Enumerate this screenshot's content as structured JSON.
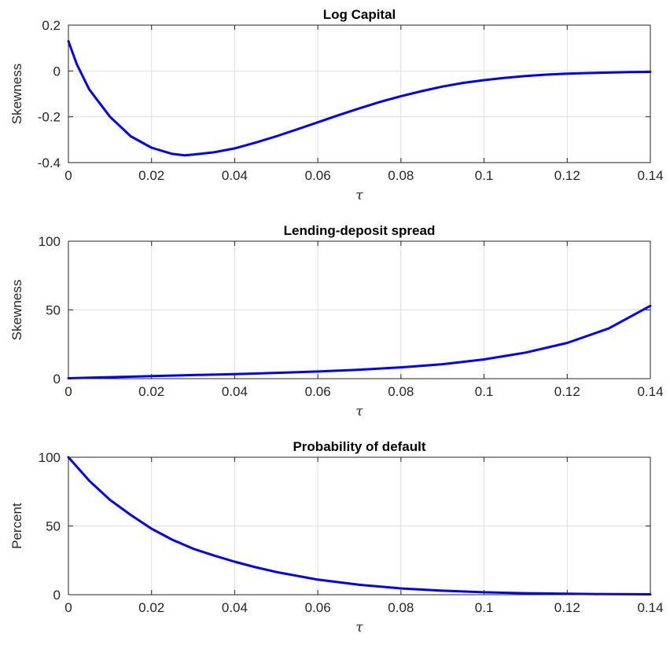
{
  "chart_data": [
    {
      "type": "line",
      "title": "Log Capital",
      "xlabel": "τ",
      "ylabel": "Skewness",
      "xlim": [
        0,
        0.14
      ],
      "ylim": [
        -0.4,
        0.2
      ],
      "xticks": [
        0,
        0.02,
        0.04,
        0.06,
        0.08,
        0.1,
        0.12,
        0.14
      ],
      "xtick_labels": [
        "0",
        "0.02",
        "0.04",
        "0.06",
        "0.08",
        "0.1",
        "0.12",
        "0.14"
      ],
      "yticks": [
        -0.4,
        -0.2,
        0,
        0.2
      ],
      "ytick_labels": [
        "-0.4",
        "-0.2",
        "0",
        "0.2"
      ],
      "grid": true,
      "series": [
        {
          "color": "#0000ff",
          "x": [
            0,
            0.002,
            0.005,
            0.01,
            0.015,
            0.02,
            0.025,
            0.028,
            0.03,
            0.035,
            0.04,
            0.045,
            0.05,
            0.055,
            0.06,
            0.065,
            0.07,
            0.075,
            0.08,
            0.085,
            0.09,
            0.095,
            0.1,
            0.105,
            0.11,
            0.115,
            0.12,
            0.125,
            0.13,
            0.135,
            0.14
          ],
          "y": [
            0.13,
            0.03,
            -0.08,
            -0.2,
            -0.285,
            -0.335,
            -0.362,
            -0.368,
            -0.365,
            -0.355,
            -0.338,
            -0.313,
            -0.285,
            -0.255,
            -0.224,
            -0.193,
            -0.163,
            -0.135,
            -0.11,
            -0.088,
            -0.068,
            -0.052,
            -0.04,
            -0.03,
            -0.022,
            -0.016,
            -0.012,
            -0.009,
            -0.007,
            -0.005,
            -0.004
          ]
        }
      ]
    },
    {
      "type": "line",
      "title": "Lending-deposit spread",
      "xlabel": "τ",
      "ylabel": "Skewness",
      "xlim": [
        0,
        0.14
      ],
      "ylim": [
        0,
        100
      ],
      "xticks": [
        0,
        0.02,
        0.04,
        0.06,
        0.08,
        0.1,
        0.12,
        0.14
      ],
      "xtick_labels": [
        "0",
        "0.02",
        "0.04",
        "0.06",
        "0.08",
        "0.1",
        "0.12",
        "0.14"
      ],
      "yticks": [
        0,
        50,
        100
      ],
      "ytick_labels": [
        "0",
        "50",
        "100"
      ],
      "grid": true,
      "series": [
        {
          "color": "#0000ff",
          "x": [
            0,
            0.01,
            0.02,
            0.03,
            0.04,
            0.05,
            0.06,
            0.07,
            0.08,
            0.09,
            0.1,
            0.11,
            0.12,
            0.13,
            0.14
          ],
          "y": [
            0.3,
            1.1,
            1.9,
            2.6,
            3.3,
            4.2,
            5.2,
            6.5,
            8.2,
            10.5,
            14,
            19,
            26,
            36.5,
            53
          ]
        }
      ]
    },
    {
      "type": "line",
      "title": "Probability of default",
      "xlabel": "τ",
      "ylabel": "Percent",
      "xlim": [
        0,
        0.14
      ],
      "ylim": [
        0,
        100
      ],
      "xticks": [
        0,
        0.02,
        0.04,
        0.06,
        0.08,
        0.1,
        0.12,
        0.14
      ],
      "xtick_labels": [
        "0",
        "0.02",
        "0.04",
        "0.06",
        "0.08",
        "0.1",
        "0.12",
        "0.14"
      ],
      "yticks": [
        0,
        50,
        100
      ],
      "ytick_labels": [
        "0",
        "50",
        "100"
      ],
      "grid": true,
      "series": [
        {
          "color": "#0000ff",
          "x": [
            0,
            0.005,
            0.01,
            0.015,
            0.02,
            0.025,
            0.03,
            0.035,
            0.04,
            0.045,
            0.05,
            0.06,
            0.07,
            0.08,
            0.09,
            0.1,
            0.11,
            0.12,
            0.13,
            0.14
          ],
          "y": [
            100,
            83,
            69,
            58,
            48,
            40,
            33.5,
            28.5,
            24,
            20,
            16.5,
            11,
            7.2,
            4.6,
            2.9,
            1.8,
            1.1,
            0.7,
            0.4,
            0.3
          ]
        }
      ]
    }
  ]
}
